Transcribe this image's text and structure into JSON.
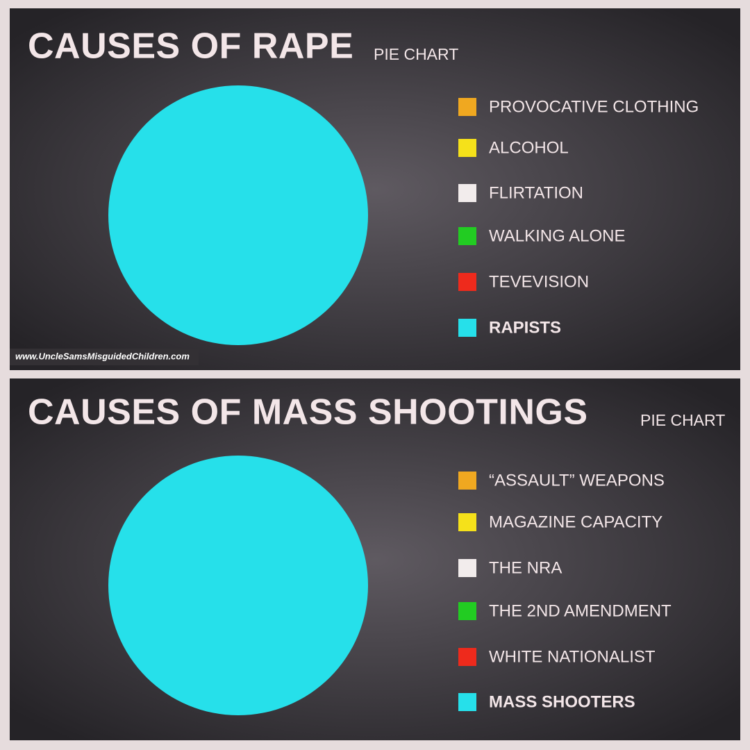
{
  "chart_data": [
    {
      "type": "pie",
      "title": "CAUSES OF RAPE",
      "subtitle": "PIE CHART",
      "categories": [
        "PROVOCATIVE CLOTHING",
        "ALCOHOL",
        "FLIRTATION",
        "WALKING ALONE",
        "TEVEVISION",
        "RAPISTS"
      ],
      "values": [
        0,
        0,
        0,
        0,
        0,
        100
      ],
      "colors": [
        "#f0a820",
        "#f5e11a",
        "#f2ecec",
        "#22cc22",
        "#ee2a1c",
        "#26e0ea"
      ],
      "watermark": "www.UncleSamsMisguidedChildren.com"
    },
    {
      "type": "pie",
      "title": "CAUSES OF MASS SHOOTINGS",
      "subtitle": "PIE CHART",
      "categories": [
        "“ASSAULT” WEAPONS",
        "MAGAZINE CAPACITY",
        "THE NRA",
        "THE 2ND AMENDMENT",
        "WHITE NATIONALIST",
        "MASS SHOOTERS"
      ],
      "values": [
        0,
        0,
        0,
        0,
        0,
        100
      ],
      "colors": [
        "#f0a820",
        "#f5e11a",
        "#f2ecec",
        "#22cc22",
        "#ee2a1c",
        "#26e0ea"
      ]
    }
  ]
}
